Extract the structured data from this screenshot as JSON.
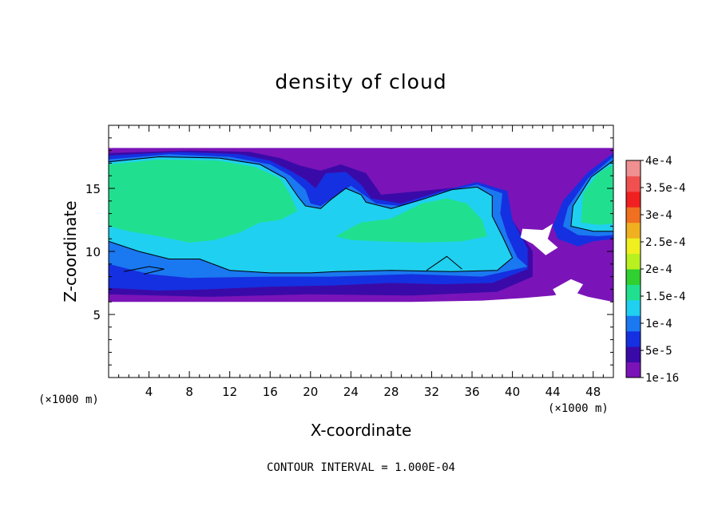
{
  "chart_data": {
    "type": "heatmap",
    "title": "density of cloud",
    "xlabel": "X-coordinate",
    "ylabel": "Z-coordinate",
    "x_unit_left": "(×1000 m)",
    "x_unit_right": "(×1000 m)",
    "xlim": [
      0,
      50
    ],
    "ylim": [
      0,
      20
    ],
    "x_ticks": [
      4,
      8,
      12,
      16,
      20,
      24,
      28,
      32,
      36,
      40,
      44,
      48
    ],
    "x_tick_labels": [
      "4",
      "8",
      "12",
      "16",
      "20",
      "24",
      "28",
      "32",
      "36",
      "40",
      "44",
      "48"
    ],
    "y_ticks": [
      5,
      10,
      15
    ],
    "y_tick_labels": [
      "5",
      "10",
      "15"
    ],
    "colorbar": {
      "levels": [
        "1e-16",
        "5e-5",
        "1e-4",
        "1.5e-4",
        "2e-4",
        "2.5e-4",
        "3e-4",
        "3.5e-4",
        "4e-4"
      ],
      "colors": [
        "#7a14b8",
        "#3a0aa8",
        "#1530e0",
        "#1a78f0",
        "#1fd0f0",
        "#20e090",
        "#30d030",
        "#b8f020",
        "#f0f020",
        "#f0b020",
        "#f07020",
        "#f02020",
        "#f05050",
        "#f09090"
      ]
    },
    "colors": {
      "purple": "#7a14b8",
      "indigo": "#3a0aa8",
      "blue": "#1530e0",
      "azure": "#1a78f0",
      "cyan": "#1fd0f0",
      "green": "#20e090"
    },
    "contour_note": "CONTOUR INTERVAL = 1.000E-04"
  }
}
